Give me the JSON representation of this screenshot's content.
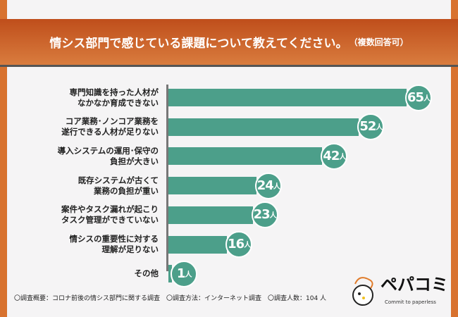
{
  "chart_data": {
    "type": "bar",
    "orientation": "horizontal",
    "title": "情シス部門で感じている課題について教えてください。",
    "title_note": "（複数回答可）",
    "unit": "人",
    "categories": [
      [
        "専門知識を持った人材が",
        "なかなか育成できない"
      ],
      [
        "コア業務･ノンコア業務を",
        "遂行できる人材が足りない"
      ],
      [
        "導入システムの運用･保守の",
        "負担が大きい"
      ],
      [
        "既存システムが古くて",
        "業務の負担が重い"
      ],
      [
        "案件やタスク漏れが起こり",
        "タスク管理ができていない"
      ],
      [
        "情シスの重要性に対する",
        "理解が足りない"
      ],
      [
        "その他"
      ]
    ],
    "values": [
      65,
      52,
      42,
      24,
      23,
      16,
      1
    ],
    "bar_color": "#4c9f8a"
  },
  "footer": "〇調査概要：コロナ前後の情シス部門に関する調査　〇調査方法：インターネット調査　〇調査人数：104 人",
  "logo": {
    "name": "ペパコミ",
    "tagline": "Commit to paperless"
  }
}
